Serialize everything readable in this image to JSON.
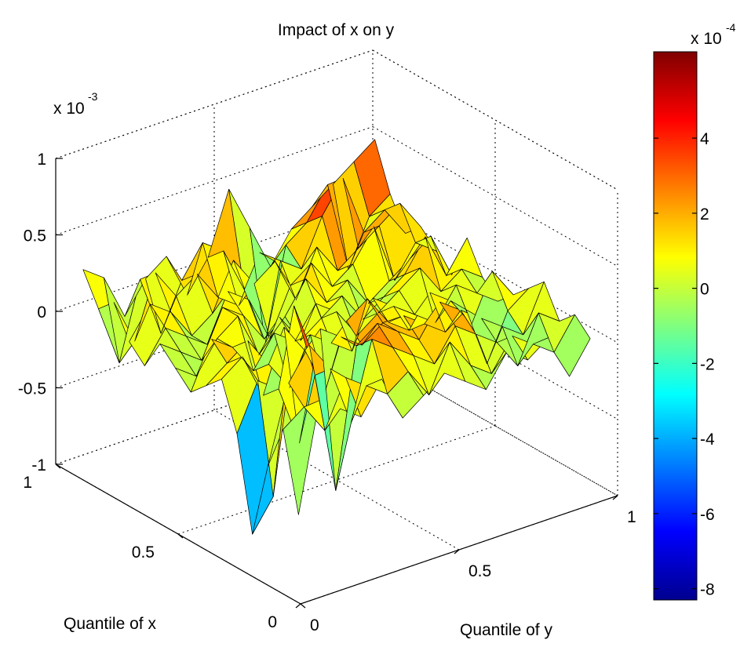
{
  "chart_data": {
    "type": "surface3d",
    "title": "Impact of x on y",
    "xlabel": "Quantile of x",
    "ylabel": "Quantile of y",
    "zlabel": "",
    "z_scale_label": "x 10",
    "z_scale_exponent": "-3",
    "z_ticks": [
      "1",
      "0.5",
      "0",
      "-0.5",
      "-1"
    ],
    "z_tick_values": [
      1,
      0.5,
      0,
      -0.5,
      -1
    ],
    "zlim": [
      -1,
      1
    ],
    "x_ticks": [
      "1",
      "0.5",
      "0"
    ],
    "x_tick_values": [
      1,
      0.5,
      0
    ],
    "y_ticks": [
      "0",
      "0.5",
      "1"
    ],
    "y_tick_values": [
      0,
      0.5,
      1
    ],
    "grid": true,
    "colormap": "jet",
    "colorbar": {
      "scale_label": "x 10",
      "scale_exponent": "-4",
      "ticks": [
        "4",
        "2",
        "0",
        "-2",
        "-4",
        "-6",
        "-8"
      ],
      "tick_values": [
        4,
        2,
        0,
        -2,
        -4,
        -6,
        -8
      ],
      "range": [
        -8.3,
        6.3
      ]
    },
    "surface_z_e4": [
      [
        -5,
        2,
        1,
        0,
        2,
        -1,
        0,
        1,
        0,
        -1,
        1,
        0,
        1,
        -2,
        0
      ],
      [
        0,
        1,
        -1,
        2,
        1,
        0,
        1,
        -1,
        2,
        0,
        -1,
        1,
        0,
        -1,
        1
      ],
      [
        -3,
        2,
        4,
        2,
        -2,
        3,
        2,
        1,
        0,
        2,
        1,
        0,
        -2,
        1,
        0
      ],
      [
        -8,
        -6,
        6,
        1,
        -7,
        2,
        3,
        2,
        1,
        3,
        2,
        1,
        0,
        -1,
        2
      ],
      [
        -2,
        1,
        0,
        -4,
        3,
        2,
        1,
        2,
        2,
        1,
        0,
        1,
        -3,
        0,
        1
      ],
      [
        1,
        2,
        -1,
        3,
        1,
        -2,
        2,
        3,
        1,
        0,
        2,
        1,
        -1,
        2,
        0
      ],
      [
        0,
        1,
        2,
        0,
        -2,
        1,
        0,
        -1,
        2,
        1,
        0,
        -1,
        1,
        0,
        -1
      ],
      [
        -1,
        2,
        1,
        -1,
        1,
        0,
        2,
        1,
        -1,
        0,
        1,
        2,
        0,
        1,
        0
      ],
      [
        0,
        -1,
        1,
        2,
        -1,
        1,
        -1,
        0,
        1,
        -1,
        0,
        1,
        3,
        0,
        2
      ],
      [
        1,
        0,
        -1,
        2,
        1,
        -1,
        0,
        2,
        0,
        1,
        -1,
        0,
        1,
        2,
        -1
      ],
      [
        -1,
        1,
        0,
        -1,
        2,
        1,
        -2,
        1,
        2,
        0,
        1,
        3,
        -1,
        1,
        0
      ],
      [
        0,
        2,
        1,
        -1,
        0,
        3,
        1,
        2,
        -1,
        2,
        0,
        1,
        2,
        3,
        1
      ],
      [
        2,
        -1,
        3,
        1,
        2,
        0,
        -1,
        2,
        1,
        0,
        3,
        5,
        1,
        2,
        0
      ],
      [
        1,
        -3,
        2,
        -2,
        1,
        3,
        2,
        -1,
        -5,
        1,
        2,
        4,
        -2,
        1,
        2
      ],
      [
        3,
        2,
        -1,
        1,
        2,
        -1,
        1,
        5,
        2,
        -1,
        1,
        2,
        3,
        4,
        5
      ]
    ]
  }
}
